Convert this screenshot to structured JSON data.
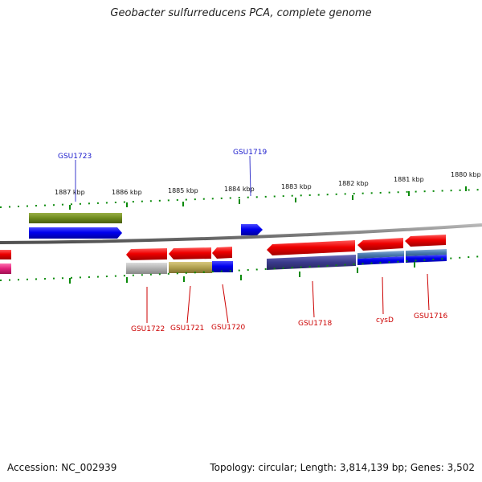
{
  "title": "Geobacter sulfurreducens PCA, complete genome",
  "footer": {
    "accession": "Accession: NC_002939",
    "summary": "Topology: circular; Length: 3,814,139 bp; Genes: 3,502"
  },
  "scale_labels": [
    "1887 kbp",
    "1886 kbp",
    "1885 kbp",
    "1884 kbp",
    "1883 kbp",
    "1882 kbp",
    "1881 kbp",
    "1880 kbp"
  ],
  "gene_labels": [
    {
      "name": "GSU1723",
      "strand": "forward",
      "color": "#1a1acc"
    },
    {
      "name": "GSU1719",
      "strand": "forward",
      "color": "#1a1acc"
    },
    {
      "name": "GSU1722",
      "strand": "reverse",
      "color": "#cc0000"
    },
    {
      "name": "GSU1721",
      "strand": "reverse",
      "color": "#cc0000"
    },
    {
      "name": "GSU1720",
      "strand": "reverse",
      "color": "#cc0000"
    },
    {
      "name": "GSU1718",
      "strand": "reverse",
      "color": "#cc0000"
    },
    {
      "name": "cysD",
      "strand": "reverse",
      "color": "#cc0000"
    },
    {
      "name": "GSU1716",
      "strand": "reverse",
      "color": "#cc0000"
    }
  ],
  "colors": {
    "backbone": "#808080",
    "ticks": "#0a8a0a",
    "forward_gene": "#0000ee",
    "reverse_gene": "#ee0000",
    "cog_olive": "#6e8a1e",
    "cog_navy": "#3a3a8c",
    "cog_steel": "#4a7ab0",
    "cog_khaki": "#b0a050",
    "cog_gray": "#b0b0b0",
    "cog_pink": "#e0207a"
  }
}
